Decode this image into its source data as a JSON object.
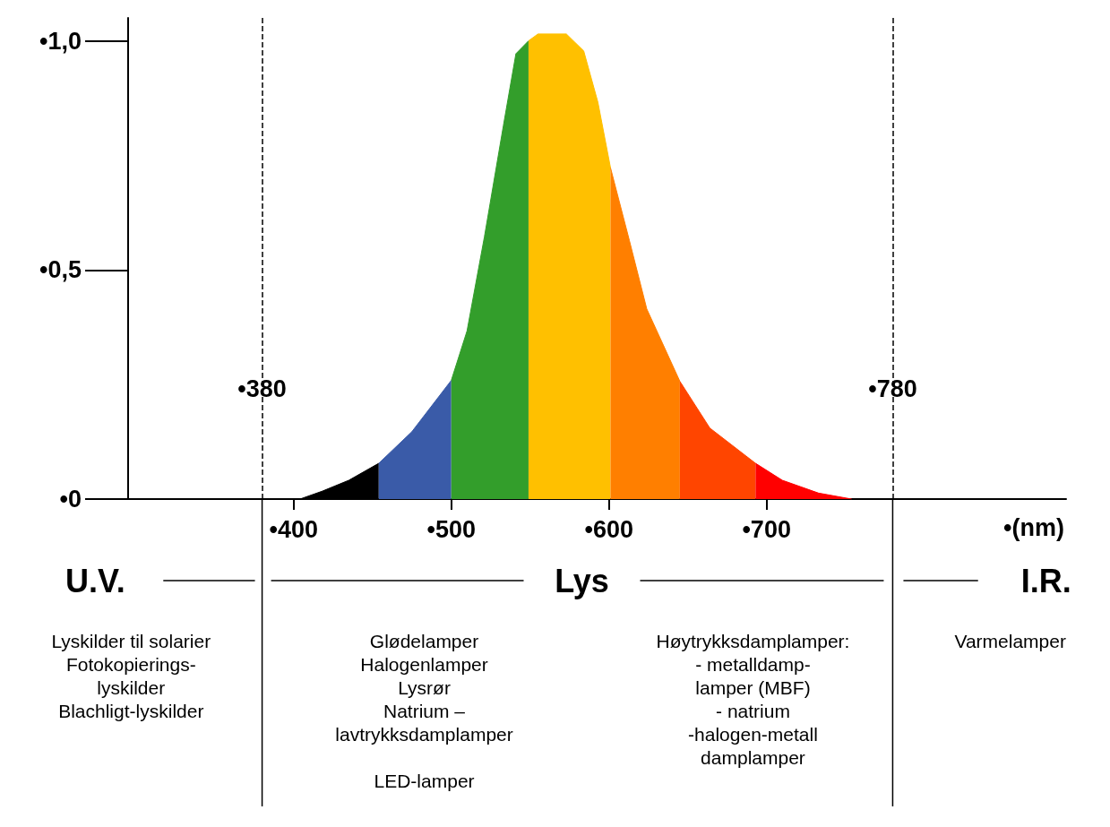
{
  "chart_data": {
    "type": "area",
    "series": [
      {
        "color": "#000000",
        "x": [
          404,
          418,
          435,
          454
        ],
        "values": [
          0,
          0.017,
          0.041,
          0.078
        ]
      },
      {
        "color": "#3a5ba8",
        "x": [
          454,
          475,
          500
        ],
        "values": [
          0.078,
          0.147,
          0.259
        ]
      },
      {
        "color": "#339e2b",
        "x": [
          500,
          510,
          521,
          533,
          541,
          549
        ],
        "values": [
          0.259,
          0.367,
          0.572,
          0.814,
          0.972,
          1.0
        ]
      },
      {
        "color": "#ffc000",
        "x": [
          549,
          555,
          573,
          584,
          593,
          601
        ],
        "values": [
          1.0,
          1.015,
          1.015,
          0.978,
          0.866,
          0.723
        ]
      },
      {
        "color": "#ff7f00",
        "x": [
          601,
          613,
          624,
          645
        ],
        "values": [
          0.723,
          0.564,
          0.415,
          0.257
        ]
      },
      {
        "color": "#ff4500",
        "x": [
          645,
          664,
          693
        ],
        "values": [
          0.257,
          0.155,
          0.078
        ]
      },
      {
        "color": "#ff0000",
        "x": [
          693,
          710,
          733,
          754
        ],
        "values": [
          0.078,
          0.041,
          0.013,
          0
        ]
      }
    ],
    "xlim": [
      295,
      890
    ],
    "xticks": [
      {
        "value": 400,
        "label": "•400"
      },
      {
        "value": 500,
        "label": "•500"
      },
      {
        "value": 600,
        "label": "•600"
      },
      {
        "value": 700,
        "label": "•700"
      }
    ],
    "ylim": [
      0,
      1.05
    ],
    "yticks": [
      {
        "value": 0,
        "label": "•0"
      },
      {
        "value": 0.5,
        "label": "•0,5"
      },
      {
        "value": 1.0,
        "label": "•1,0"
      }
    ],
    "xlabel": "•(nm)",
    "ref_lines": [
      {
        "axis": "x",
        "value": 380,
        "label": "•380",
        "line_style": "dashed",
        "color": "#000000"
      },
      {
        "axis": "x",
        "value": 780,
        "label": "•780",
        "line_style": "dashed",
        "color": "#000000"
      }
    ],
    "annotations": [
      "U.V.",
      "Lys",
      "I.R.",
      "Lyskilder til solarier\nFotokopierings-\nlyskilder\nBlachligt-lyskilder",
      "Glødelamper\nHalogenlamper\nLysrør\nNatrium –\nlavtrykksdamplamper\n\nLED-lamper",
      "Høytrykksdamplamper:\n- metalldamp-\nlamper (MBF)\n- natrium\n-halogen-metall\ndamplamper",
      "Varmelamper"
    ],
    "grid": false,
    "marker": "none"
  }
}
